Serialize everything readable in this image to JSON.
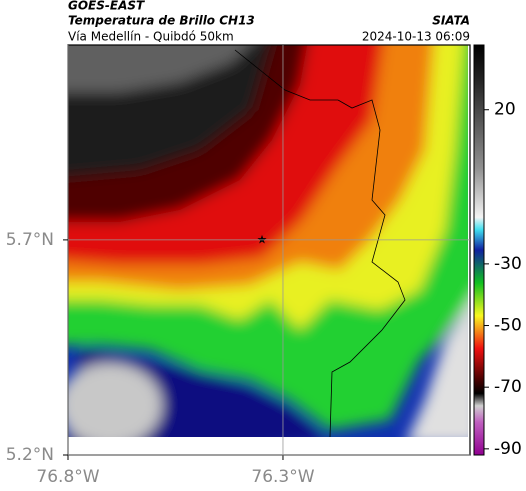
{
  "header": {
    "title": "GOES-EAST",
    "subtitle": "Temperatura de Brillo CH13",
    "route": "Vía Medellín - Quibdó 50km",
    "source": "SIATA",
    "datetime": "2024-10-13 06:09"
  },
  "map": {
    "lon_range": [
      -76.8,
      -75.865
    ],
    "lat_range": [
      5.2,
      6.153
    ],
    "lon_ticks": [
      {
        "value": -76.8,
        "label": "76.8°W"
      },
      {
        "value": -76.3,
        "label": "76.3°W"
      }
    ],
    "lat_ticks": [
      {
        "value": 5.7,
        "label": "5.7°N"
      },
      {
        "value": 5.2,
        "label": "5.2°N"
      }
    ]
  },
  "colorbar": {
    "range": [
      -92,
      41
    ],
    "ticks": [
      20,
      -30,
      -50,
      -70,
      -90
    ]
  }
}
